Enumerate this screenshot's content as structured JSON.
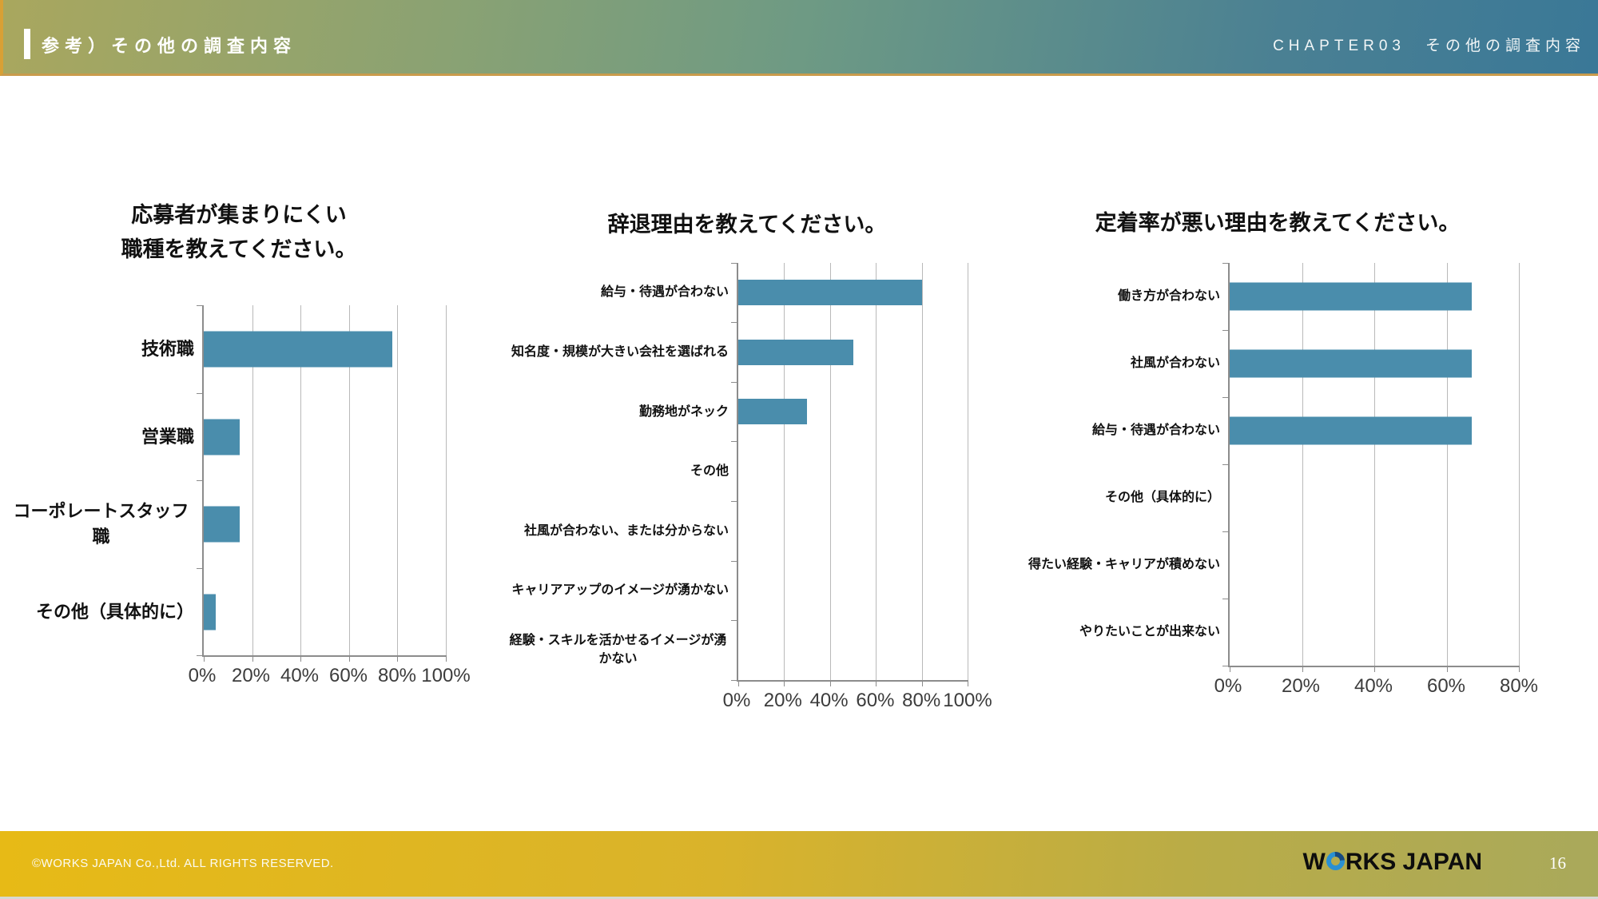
{
  "header": {
    "title": "参考）その他の調査内容",
    "chapter": "CHAPTER03　その他の調査内容"
  },
  "chart_data": [
    {
      "type": "bar",
      "orientation": "horizontal",
      "title_lines": [
        "応募者が集まりにくい",
        "職種を教えてください。"
      ],
      "categories": [
        "技術職",
        "営業職",
        "コーポレートスタッフ職",
        "その他（具体的に）"
      ],
      "values": [
        78,
        15,
        15,
        5
      ],
      "unit": "%",
      "xlim": [
        0,
        100
      ],
      "tick_values": [
        0,
        20,
        40,
        60,
        80,
        100
      ],
      "tick_labels": [
        "0%",
        "20%",
        "40%",
        "60%",
        "80%",
        "100%"
      ],
      "grid": true,
      "legend": false
    },
    {
      "type": "bar",
      "orientation": "horizontal",
      "title_lines": [
        "辞退理由を教えてください。"
      ],
      "categories": [
        "給与・待遇が合わない",
        "知名度・規模が大きい会社を選ばれる",
        "勤務地がネック",
        "その他",
        "社風が合わない、または分からない",
        "キャリアアップのイメージが湧かない",
        "経験・スキルを活かせるイメージが湧かない"
      ],
      "values": [
        80,
        50,
        30,
        0,
        0,
        0,
        0
      ],
      "unit": "%",
      "xlim": [
        0,
        100
      ],
      "tick_values": [
        0,
        20,
        40,
        60,
        80,
        100
      ],
      "tick_labels": [
        "0%",
        "20%",
        "40%",
        "60%",
        "80%",
        "100%"
      ],
      "grid": true,
      "legend": false
    },
    {
      "type": "bar",
      "orientation": "horizontal",
      "title_lines": [
        "定着率が悪い理由を教えてください。"
      ],
      "categories": [
        "働き方が合わない",
        "社風が合わない",
        "給与・待遇が合わない",
        "その他（具体的に）",
        "得たい経験・キャリアが積めない",
        "やりたいことが出来ない"
      ],
      "values": [
        67,
        67,
        67,
        0,
        0,
        0
      ],
      "unit": "%",
      "xlim": [
        0,
        80
      ],
      "tick_values": [
        0,
        20,
        40,
        60,
        80
      ],
      "tick_labels": [
        "0%",
        "20%",
        "40%",
        "60%",
        "80%"
      ],
      "grid": true,
      "legend": false
    }
  ],
  "footer": {
    "copyright": "©WORKS JAPAN Co.,Ltd. ALL RIGHTS RESERVED.",
    "logo_pre": "W",
    "logo_post": "RKS JAPAN",
    "page_number": "16"
  },
  "colors": {
    "bar": "#4a8dac",
    "gridline": "#b9b9b9",
    "axis": "#8c8c8c",
    "header_left": "#a9a75e",
    "header_right": "#3a7897",
    "header_border": "#c99b4c",
    "footer_left": "#e7ba16",
    "footer_right": "#a9a95b",
    "logo_blue": "#2a90d2"
  }
}
